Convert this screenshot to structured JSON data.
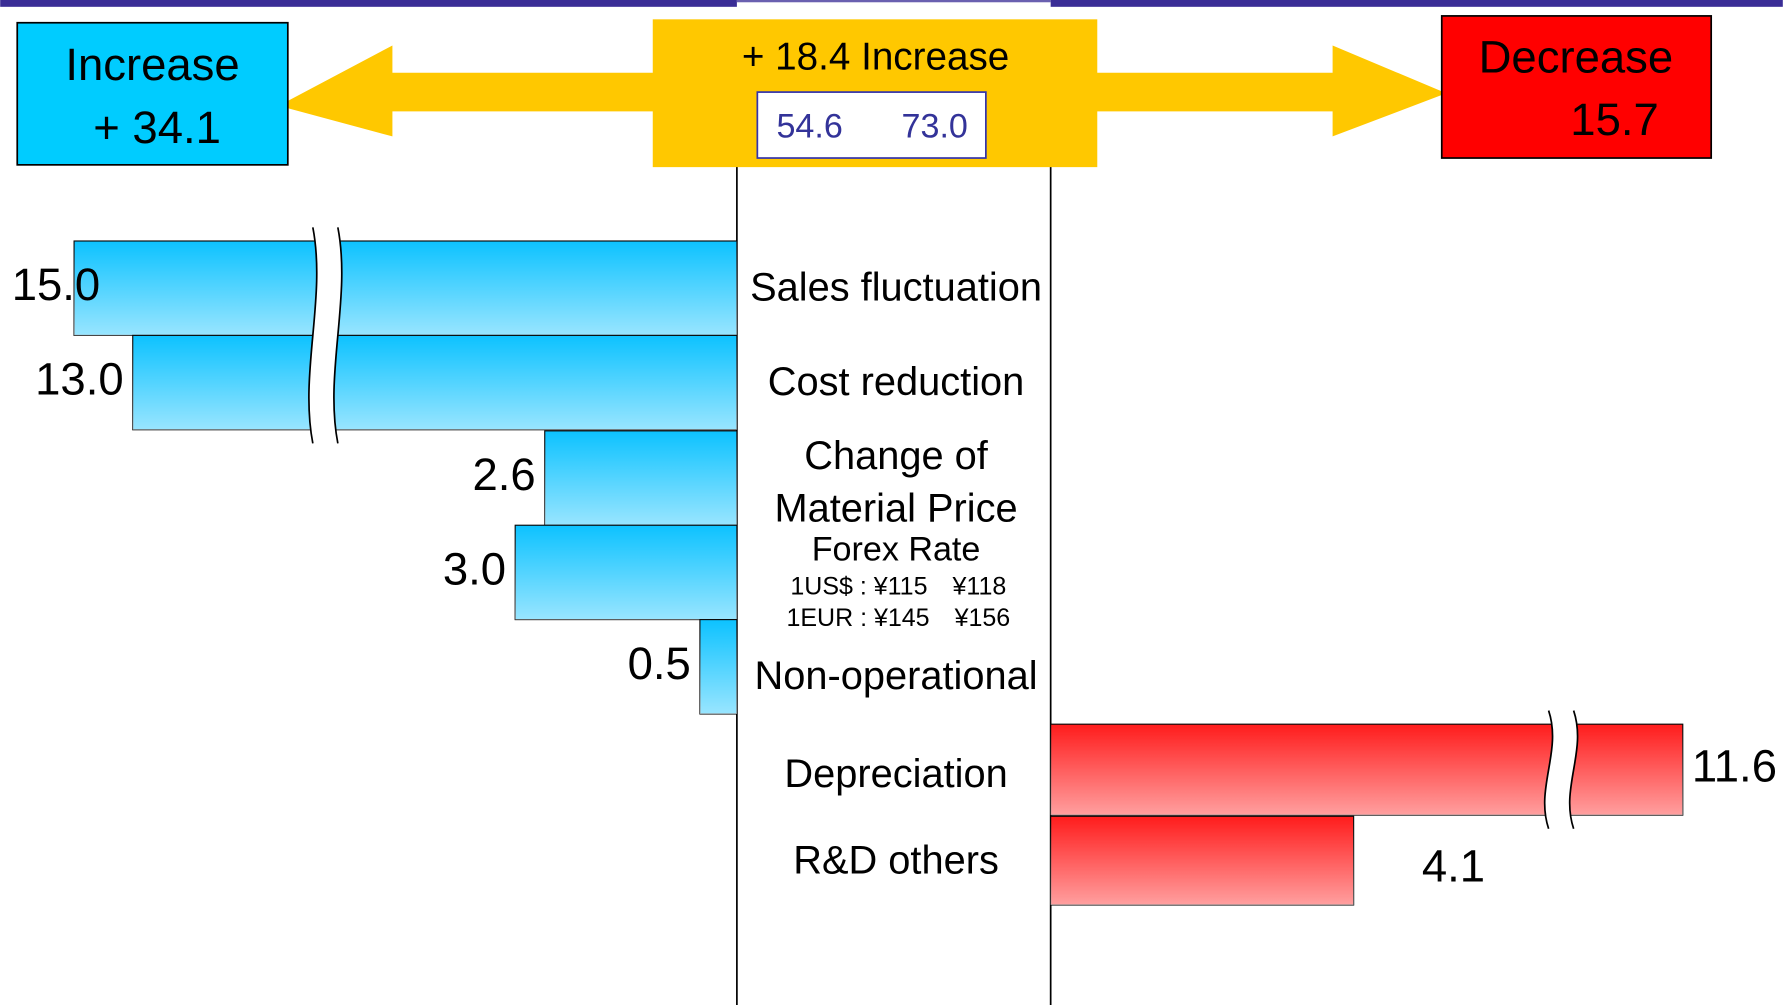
{
  "chart_data": {
    "type": "bar",
    "categories": [
      "Sales fluctuation",
      "Cost reduction",
      "Change of Material Price",
      "Forex Rate",
      "Non-operational",
      "Depreciation",
      "R&D others"
    ],
    "series": [
      {
        "name": "Increase",
        "color": "#00bfff",
        "values": [
          15.0,
          13.0,
          2.6,
          3.0,
          0.5,
          null,
          null
        ],
        "value_labels": [
          "15.0",
          "13.0",
          "2.6",
          "3.0",
          "0.5",
          null,
          null
        ]
      },
      {
        "name": "Decrease",
        "color": "#ff1010",
        "values": [
          null,
          null,
          null,
          null,
          null,
          11.6,
          4.1
        ],
        "value_labels": [
          null,
          null,
          null,
          null,
          null,
          "11.6",
          "4.1"
        ]
      }
    ],
    "notes": [
      "1US$ : ¥115　¥118",
      "1EUR : ¥145　¥156"
    ],
    "annotations": {
      "increase_total": "+  34.1",
      "center_label": "+ 18.4  Increase",
      "center_from": "54.6",
      "center_to": "73.0",
      "decrease_total": "15.7"
    }
  }
}
